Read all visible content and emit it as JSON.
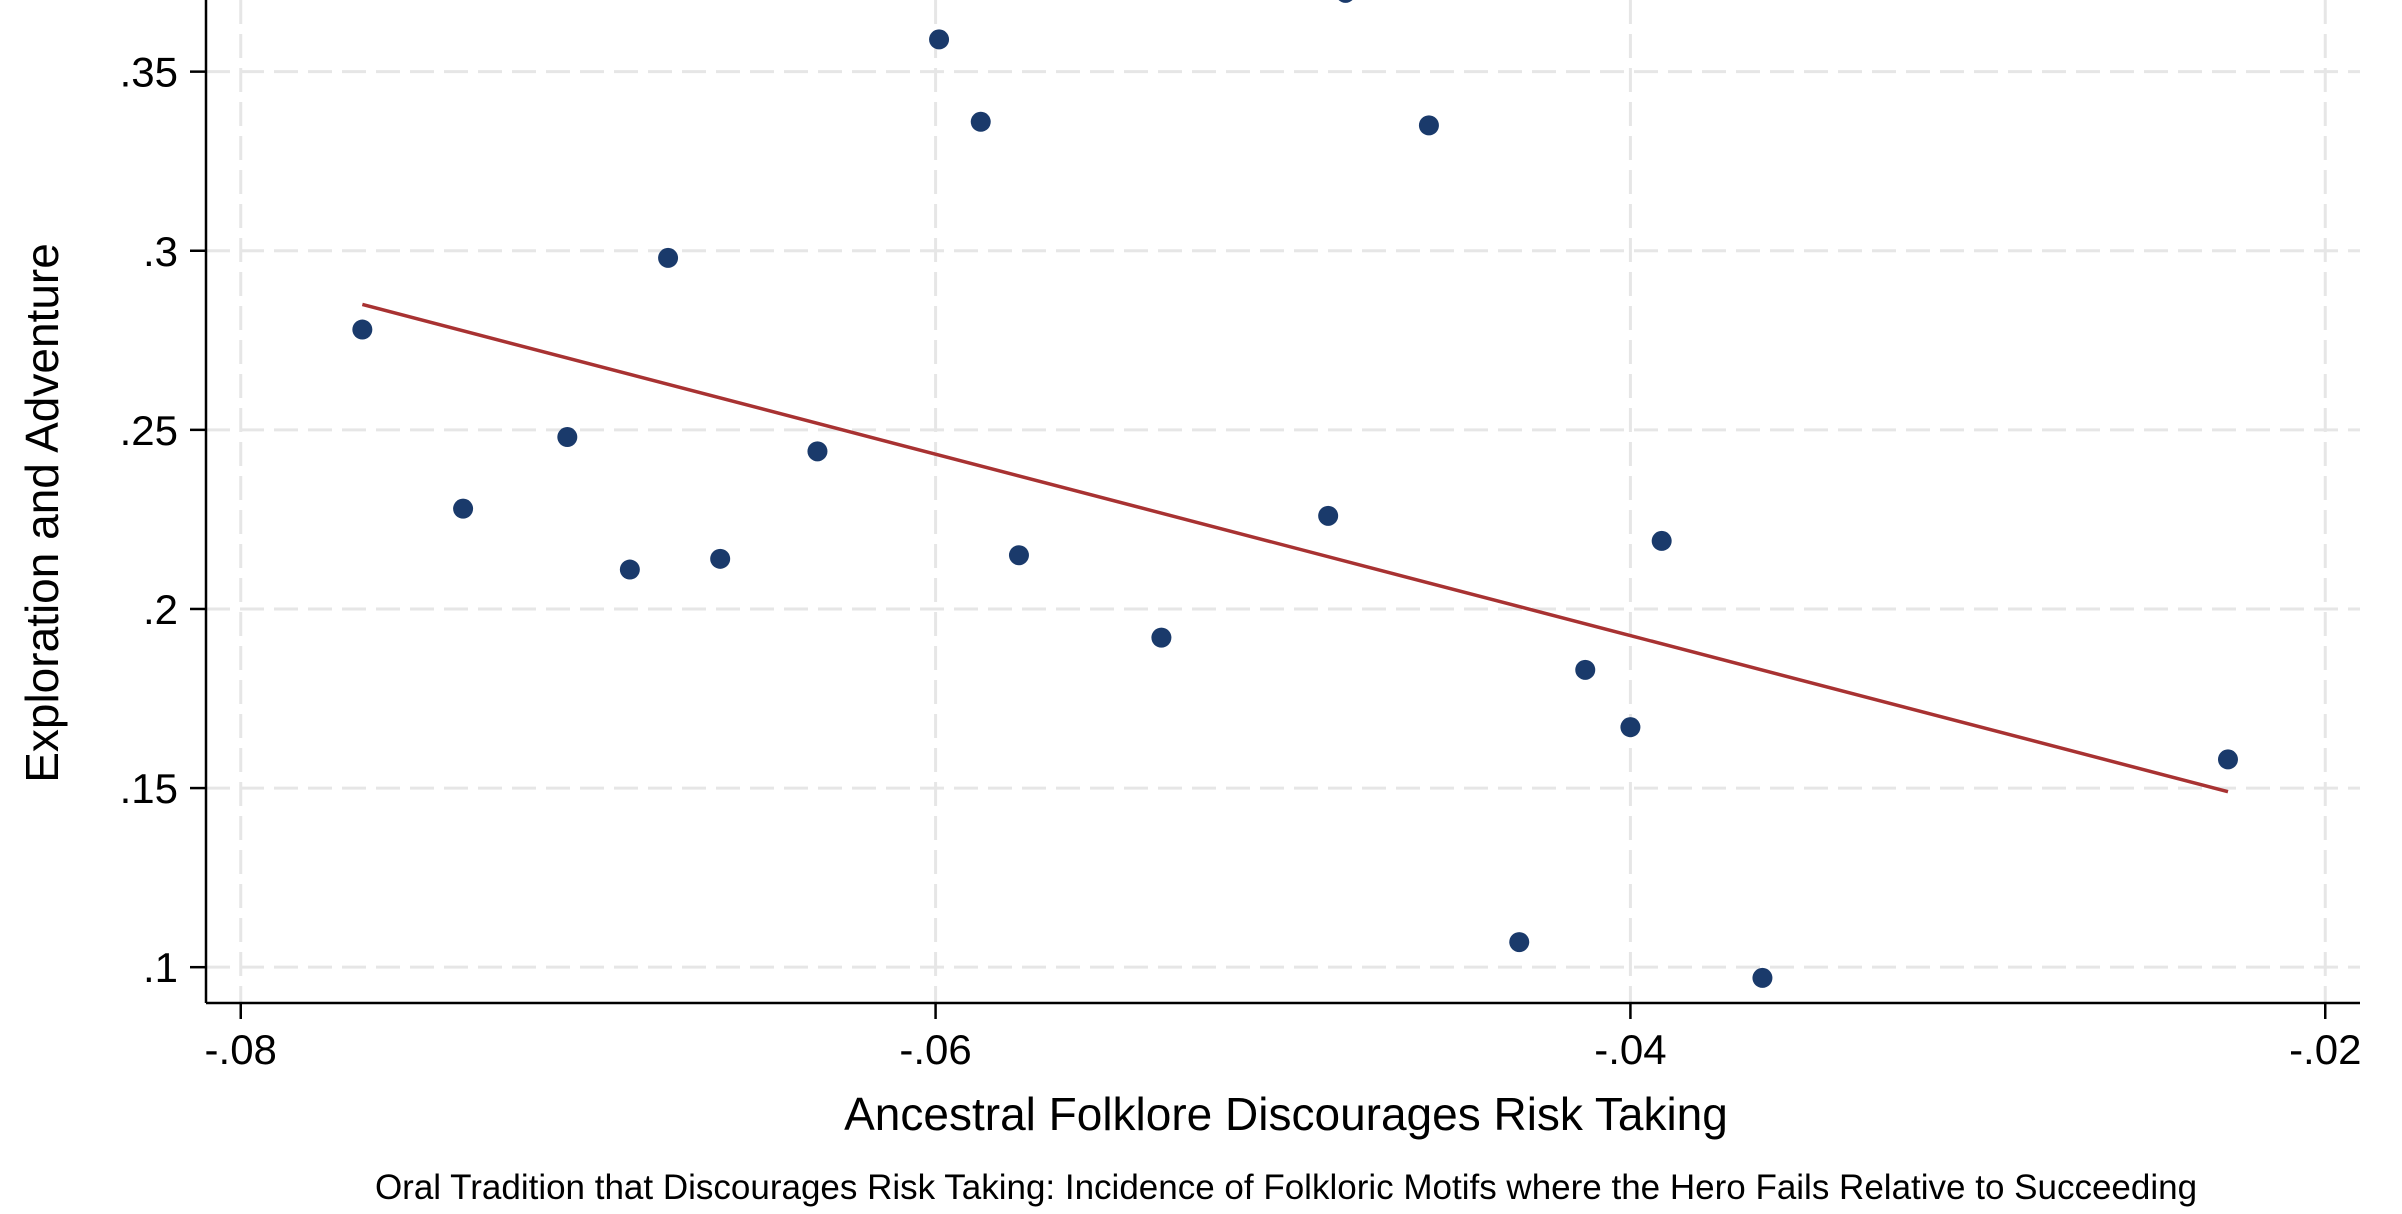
{
  "chart_data": {
    "type": "scatter",
    "xlabel": "Ancestral Folklore Discourages Risk Taking",
    "ylabel": "Exploration and Adventure",
    "caption": "Oral Tradition that Discourages Risk Taking: Incidence of Folkloric Motifs where the Hero Fails Relative to Succeeding",
    "xlim": [
      -0.081,
      -0.019
    ],
    "ylim": [
      0.09,
      0.37
    ],
    "x_ticks": [
      {
        "value": -0.08,
        "label": "-.08"
      },
      {
        "value": -0.06,
        "label": "-.06"
      },
      {
        "value": -0.04,
        "label": "-.04"
      },
      {
        "value": -0.02,
        "label": "-.02"
      }
    ],
    "y_ticks": [
      {
        "value": 0.1,
        "label": ".1"
      },
      {
        "value": 0.15,
        "label": ".15"
      },
      {
        "value": 0.2,
        "label": ".2"
      },
      {
        "value": 0.25,
        "label": ".25"
      },
      {
        "value": 0.3,
        "label": ".3"
      },
      {
        "value": 0.35,
        "label": ".35"
      }
    ],
    "grid": true,
    "points": [
      {
        "x": -0.0765,
        "y": 0.278
      },
      {
        "x": -0.0736,
        "y": 0.228
      },
      {
        "x": -0.0706,
        "y": 0.248
      },
      {
        "x": -0.0688,
        "y": 0.211
      },
      {
        "x": -0.0677,
        "y": 0.298
      },
      {
        "x": -0.0662,
        "y": 0.214
      },
      {
        "x": -0.0634,
        "y": 0.244
      },
      {
        "x": -0.0599,
        "y": 0.359
      },
      {
        "x": -0.0587,
        "y": 0.336
      },
      {
        "x": -0.0576,
        "y": 0.215
      },
      {
        "x": -0.0535,
        "y": 0.192
      },
      {
        "x": -0.0487,
        "y": 0.226
      },
      {
        "x": -0.0482,
        "y": 0.372
      },
      {
        "x": -0.0458,
        "y": 0.335
      },
      {
        "x": -0.0432,
        "y": 0.107
      },
      {
        "x": -0.0413,
        "y": 0.183
      },
      {
        "x": -0.04,
        "y": 0.167
      },
      {
        "x": -0.0391,
        "y": 0.219
      },
      {
        "x": -0.0362,
        "y": 0.097
      },
      {
        "x": -0.0228,
        "y": 0.158
      }
    ],
    "fit_line": {
      "x": [
        -0.0765,
        -0.0228
      ],
      "y": [
        0.285,
        0.149
      ]
    },
    "colors": {
      "points": "#1a3a6b",
      "fit_line": "#a83232",
      "grid": "#e6e6e6",
      "axis": "#000000"
    }
  }
}
